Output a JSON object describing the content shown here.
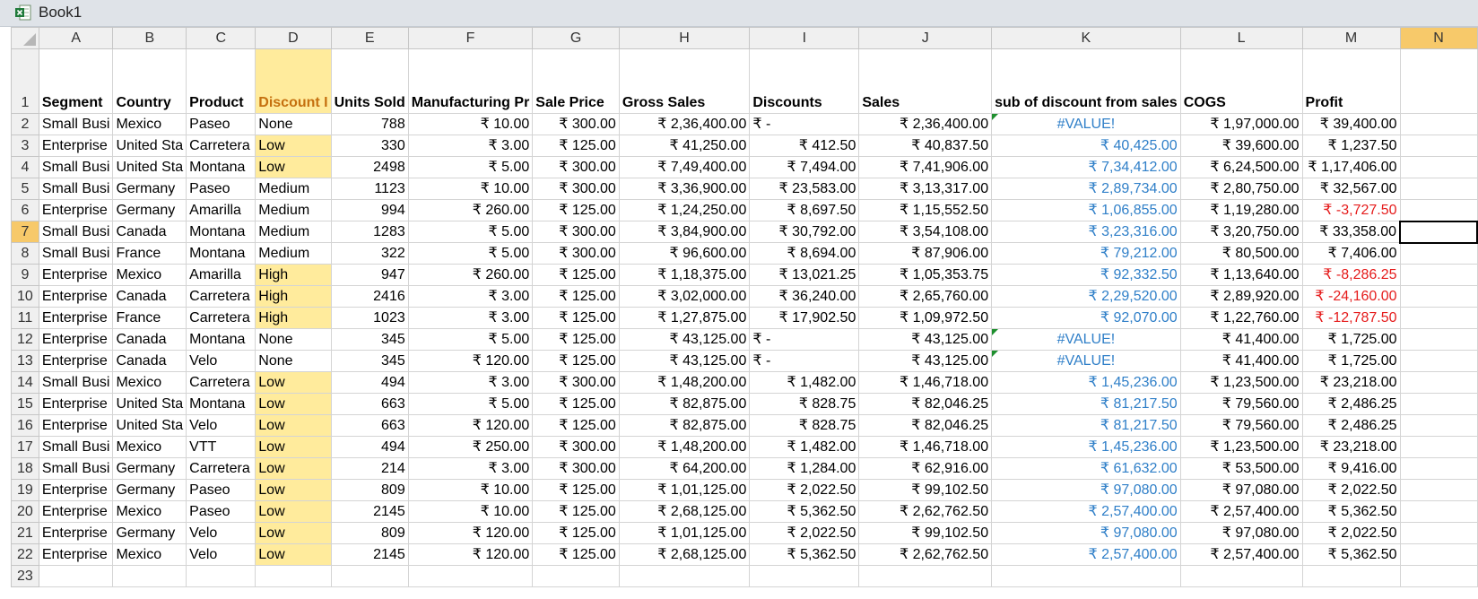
{
  "window": {
    "title": "Book1"
  },
  "columns": [
    "A",
    "B",
    "C",
    "D",
    "E",
    "F",
    "G",
    "H",
    "I",
    "J",
    "K",
    "L",
    "M",
    "N"
  ],
  "header_row": {
    "number": "1",
    "cells": [
      "Segment",
      "Country",
      "Product",
      "Discount I",
      "Units Sold",
      "Manufacturing Pr",
      "Sale Price",
      "Gross Sales",
      "Discounts",
      "Sales",
      "sub of discount from sales",
      "COGS",
      "Profit",
      ""
    ]
  },
  "rows": [
    {
      "n": "2",
      "segment": "Small Busi",
      "country": "Mexico",
      "product": "Paseo",
      "band": "None",
      "units": "788",
      "mfg": "₹ 10.00",
      "price": "₹ 300.00",
      "gross": "₹ 2,36,400.00",
      "disc": "₹ -",
      "sales": "₹ 2,36,400.00",
      "sub": "#VALUE!",
      "cogs": "₹ 1,97,000.00",
      "profit": "₹ 39,400.00"
    },
    {
      "n": "3",
      "segment": "Enterprise",
      "country": "United Sta",
      "product": "Carretera",
      "band": "Low",
      "units": "330",
      "mfg": "₹ 3.00",
      "price": "₹ 125.00",
      "gross": "₹ 41,250.00",
      "disc": "₹ 412.50",
      "sales": "₹ 40,837.50",
      "sub": "₹ 40,425.00",
      "cogs": "₹ 39,600.00",
      "profit": "₹ 1,237.50"
    },
    {
      "n": "4",
      "segment": "Small Busi",
      "country": "United Sta",
      "product": "Montana",
      "band": "Low",
      "units": "2498",
      "mfg": "₹ 5.00",
      "price": "₹ 300.00",
      "gross": "₹ 7,49,400.00",
      "disc": "₹ 7,494.00",
      "sales": "₹ 7,41,906.00",
      "sub": "₹ 7,34,412.00",
      "cogs": "₹ 6,24,500.00",
      "profit": "₹ 1,17,406.00"
    },
    {
      "n": "5",
      "segment": "Small Busi",
      "country": "Germany",
      "product": "Paseo",
      "band": "Medium",
      "units": "1123",
      "mfg": "₹ 10.00",
      "price": "₹ 300.00",
      "gross": "₹ 3,36,900.00",
      "disc": "₹ 23,583.00",
      "sales": "₹ 3,13,317.00",
      "sub": "₹ 2,89,734.00",
      "cogs": "₹ 2,80,750.00",
      "profit": "₹ 32,567.00"
    },
    {
      "n": "6",
      "segment": "Enterprise",
      "country": "Germany",
      "product": "Amarilla",
      "band": "Medium",
      "units": "994",
      "mfg": "₹ 260.00",
      "price": "₹ 125.00",
      "gross": "₹ 1,24,250.00",
      "disc": "₹ 8,697.50",
      "sales": "₹ 1,15,552.50",
      "sub": "₹ 1,06,855.00",
      "cogs": "₹ 1,19,280.00",
      "profit": "₹ -3,727.50"
    },
    {
      "n": "7",
      "segment": "Small Busi",
      "country": "Canada",
      "product": "Montana",
      "band": "Medium",
      "units": "1283",
      "mfg": "₹ 5.00",
      "price": "₹ 300.00",
      "gross": "₹ 3,84,900.00",
      "disc": "₹ 30,792.00",
      "sales": "₹ 3,54,108.00",
      "sub": "₹ 3,23,316.00",
      "cogs": "₹ 3,20,750.00",
      "profit": "₹ 33,358.00"
    },
    {
      "n": "8",
      "segment": "Small Busi",
      "country": "France",
      "product": "Montana",
      "band": "Medium",
      "units": "322",
      "mfg": "₹ 5.00",
      "price": "₹ 300.00",
      "gross": "₹ 96,600.00",
      "disc": "₹ 8,694.00",
      "sales": "₹ 87,906.00",
      "sub": "₹ 79,212.00",
      "cogs": "₹ 80,500.00",
      "profit": "₹ 7,406.00"
    },
    {
      "n": "9",
      "segment": "Enterprise",
      "country": "Mexico",
      "product": "Amarilla",
      "band": "High",
      "units": "947",
      "mfg": "₹ 260.00",
      "price": "₹ 125.00",
      "gross": "₹ 1,18,375.00",
      "disc": "₹ 13,021.25",
      "sales": "₹ 1,05,353.75",
      "sub": "₹ 92,332.50",
      "cogs": "₹ 1,13,640.00",
      "profit": "₹ -8,286.25"
    },
    {
      "n": "10",
      "segment": "Enterprise",
      "country": "Canada",
      "product": "Carretera",
      "band": "High",
      "units": "2416",
      "mfg": "₹ 3.00",
      "price": "₹ 125.00",
      "gross": "₹ 3,02,000.00",
      "disc": "₹ 36,240.00",
      "sales": "₹ 2,65,760.00",
      "sub": "₹ 2,29,520.00",
      "cogs": "₹ 2,89,920.00",
      "profit": "₹ -24,160.00"
    },
    {
      "n": "11",
      "segment": "Enterprise",
      "country": "France",
      "product": "Carretera",
      "band": "High",
      "units": "1023",
      "mfg": "₹ 3.00",
      "price": "₹ 125.00",
      "gross": "₹ 1,27,875.00",
      "disc": "₹ 17,902.50",
      "sales": "₹ 1,09,972.50",
      "sub": "₹ 92,070.00",
      "cogs": "₹ 1,22,760.00",
      "profit": "₹ -12,787.50"
    },
    {
      "n": "12",
      "segment": "Enterprise",
      "country": "Canada",
      "product": "Montana",
      "band": "None",
      "units": "345",
      "mfg": "₹ 5.00",
      "price": "₹ 125.00",
      "gross": "₹ 43,125.00",
      "disc": "₹ -",
      "sales": "₹ 43,125.00",
      "sub": "#VALUE!",
      "cogs": "₹ 41,400.00",
      "profit": "₹ 1,725.00"
    },
    {
      "n": "13",
      "segment": "Enterprise",
      "country": "Canada",
      "product": "Velo",
      "band": "None",
      "units": "345",
      "mfg": "₹ 120.00",
      "price": "₹ 125.00",
      "gross": "₹ 43,125.00",
      "disc": "₹ -",
      "sales": "₹ 43,125.00",
      "sub": "#VALUE!",
      "cogs": "₹ 41,400.00",
      "profit": "₹ 1,725.00"
    },
    {
      "n": "14",
      "segment": "Small Busi",
      "country": "Mexico",
      "product": "Carretera",
      "band": "Low",
      "units": "494",
      "mfg": "₹ 3.00",
      "price": "₹ 300.00",
      "gross": "₹ 1,48,200.00",
      "disc": "₹ 1,482.00",
      "sales": "₹ 1,46,718.00",
      "sub": "₹ 1,45,236.00",
      "cogs": "₹ 1,23,500.00",
      "profit": "₹ 23,218.00"
    },
    {
      "n": "15",
      "segment": "Enterprise",
      "country": "United Sta",
      "product": "Montana",
      "band": "Low",
      "units": "663",
      "mfg": "₹ 5.00",
      "price": "₹ 125.00",
      "gross": "₹ 82,875.00",
      "disc": "₹ 828.75",
      "sales": "₹ 82,046.25",
      "sub": "₹ 81,217.50",
      "cogs": "₹ 79,560.00",
      "profit": "₹ 2,486.25"
    },
    {
      "n": "16",
      "segment": "Enterprise",
      "country": "United Sta",
      "product": "Velo",
      "band": "Low",
      "units": "663",
      "mfg": "₹ 120.00",
      "price": "₹ 125.00",
      "gross": "₹ 82,875.00",
      "disc": "₹ 828.75",
      "sales": "₹ 82,046.25",
      "sub": "₹ 81,217.50",
      "cogs": "₹ 79,560.00",
      "profit": "₹ 2,486.25"
    },
    {
      "n": "17",
      "segment": "Small Busi",
      "country": "Mexico",
      "product": "VTT",
      "band": "Low",
      "units": "494",
      "mfg": "₹ 250.00",
      "price": "₹ 300.00",
      "gross": "₹ 1,48,200.00",
      "disc": "₹ 1,482.00",
      "sales": "₹ 1,46,718.00",
      "sub": "₹ 1,45,236.00",
      "cogs": "₹ 1,23,500.00",
      "profit": "₹ 23,218.00"
    },
    {
      "n": "18",
      "segment": "Small Busi",
      "country": "Germany",
      "product": "Carretera",
      "band": "Low",
      "units": "214",
      "mfg": "₹ 3.00",
      "price": "₹ 300.00",
      "gross": "₹ 64,200.00",
      "disc": "₹ 1,284.00",
      "sales": "₹ 62,916.00",
      "sub": "₹ 61,632.00",
      "cogs": "₹ 53,500.00",
      "profit": "₹ 9,416.00"
    },
    {
      "n": "19",
      "segment": "Enterprise",
      "country": "Germany",
      "product": "Paseo",
      "band": "Low",
      "units": "809",
      "mfg": "₹ 10.00",
      "price": "₹ 125.00",
      "gross": "₹ 1,01,125.00",
      "disc": "₹ 2,022.50",
      "sales": "₹ 99,102.50",
      "sub": "₹ 97,080.00",
      "cogs": "₹ 97,080.00",
      "profit": "₹ 2,022.50"
    },
    {
      "n": "20",
      "segment": "Enterprise",
      "country": "Mexico",
      "product": "Paseo",
      "band": "Low",
      "units": "2145",
      "mfg": "₹ 10.00",
      "price": "₹ 125.00",
      "gross": "₹ 2,68,125.00",
      "disc": "₹ 5,362.50",
      "sales": "₹ 2,62,762.50",
      "sub": "₹ 2,57,400.00",
      "cogs": "₹ 2,57,400.00",
      "profit": "₹ 5,362.50"
    },
    {
      "n": "21",
      "segment": "Enterprise",
      "country": "Germany",
      "product": "Velo",
      "band": "Low",
      "units": "809",
      "mfg": "₹ 120.00",
      "price": "₹ 125.00",
      "gross": "₹ 1,01,125.00",
      "disc": "₹ 2,022.50",
      "sales": "₹ 99,102.50",
      "sub": "₹ 97,080.00",
      "cogs": "₹ 97,080.00",
      "profit": "₹ 2,022.50"
    },
    {
      "n": "22",
      "segment": "Enterprise",
      "country": "Mexico",
      "product": "Velo",
      "band": "Low",
      "units": "2145",
      "mfg": "₹ 120.00",
      "price": "₹ 125.00",
      "gross": "₹ 2,68,125.00",
      "disc": "₹ 5,362.50",
      "sales": "₹ 2,62,762.50",
      "sub": "₹ 2,57,400.00",
      "cogs": "₹ 2,57,400.00",
      "profit": "₹ 5,362.50"
    }
  ],
  "last_row_number": "23",
  "colors": {
    "selected_header": "#f7c96a",
    "highlight_fill": "#ffeb9c",
    "highlight_text": "#c5700f",
    "blue_text": "#2f7fc8",
    "negative_text": "#e51c1c",
    "error_marker": "#1e8f2e"
  }
}
